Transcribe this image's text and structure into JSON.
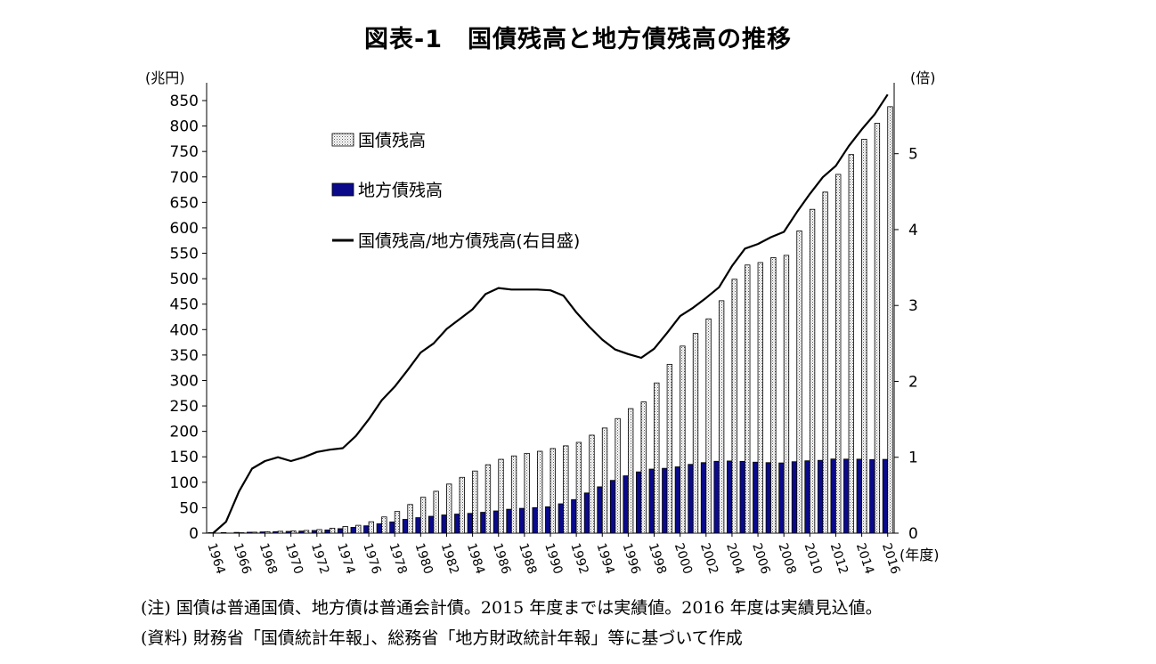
{
  "title": "図表-1　国債残高と地方債残高の推移",
  "notes": {
    "note1": "(注) 国債は普通国債、地方債は普通会計債。2015 年度までは実績値。2016 年度は実績見込値。",
    "note2": "(資料) 財務省「国債統計年報」、総務省「地方財政統計年報」等に基づいて作成"
  },
  "chart_data": {
    "type": "bar",
    "title": "図表-1　国債残高と地方債残高の推移",
    "xlabel": "(年度)",
    "ylabel": "(兆円)",
    "y2label": "(倍)",
    "ylim": [
      0,
      850
    ],
    "y2lim": [
      0,
      5.7
    ],
    "y_ticks": [
      0,
      50,
      100,
      150,
      200,
      250,
      300,
      350,
      400,
      450,
      500,
      550,
      600,
      650,
      700,
      750,
      800,
      850
    ],
    "y2_ticks": [
      0,
      1,
      2,
      3,
      4,
      5
    ],
    "x_tick_labels": [
      "1964",
      "1966",
      "1968",
      "1970",
      "1972",
      "1974",
      "1976",
      "1978",
      "1980",
      "1982",
      "1984",
      "1986",
      "1988",
      "1990",
      "1992",
      "1994",
      "1996",
      "1998",
      "2000",
      "2002",
      "2004",
      "2006",
      "2008",
      "2010",
      "2012",
      "2014",
      "2016"
    ],
    "categories": [
      1964,
      1965,
      1966,
      1967,
      1968,
      1969,
      1970,
      1971,
      1972,
      1973,
      1974,
      1975,
      1976,
      1977,
      1978,
      1979,
      1980,
      1981,
      1982,
      1983,
      1984,
      1985,
      1986,
      1987,
      1988,
      1989,
      1990,
      1991,
      1992,
      1993,
      1994,
      1995,
      1996,
      1997,
      1998,
      1999,
      2000,
      2001,
      2002,
      2003,
      2004,
      2005,
      2006,
      2007,
      2008,
      2009,
      2010,
      2011,
      2012,
      2013,
      2014,
      2015,
      2016
    ],
    "legend": [
      "国債残高",
      "地方債残高",
      "国債残高/地方債残高(右目盛)"
    ],
    "series": [
      {
        "name": "国債残高",
        "axis": "left",
        "type": "bar",
        "values": [
          0,
          0.2,
          0.9,
          1.9,
          2.8,
          3.7,
          4.2,
          5.3,
          7.0,
          9.7,
          13.1,
          15.5,
          22.4,
          31.9,
          42.6,
          56.3,
          70.5,
          82.3,
          96.5,
          109.7,
          122.1,
          134.4,
          145.1,
          151.8,
          156.8,
          160.9,
          166.3,
          171.6,
          178.4,
          192.5,
          206.6,
          225.2,
          244.7,
          258.0,
          295.2,
          331.7,
          367.6,
          392.4,
          421.1,
          456.7,
          499.0,
          526.9,
          531.7,
          541.5,
          545.9,
          593.9,
          636.3,
          670.2,
          705.0,
          743.9,
          774.1,
          805.4,
          838.0
        ]
      },
      {
        "name": "地方債残高",
        "axis": "left",
        "type": "bar",
        "values": [
          1.0,
          1.2,
          1.5,
          1.9,
          2.5,
          3.0,
          3.5,
          4.1,
          5.3,
          6.3,
          8.9,
          11.4,
          14.5,
          18.4,
          22.1,
          27.1,
          30.5,
          33.2,
          35.8,
          37.5,
          38.9,
          41.0,
          43.7,
          47.0,
          48.8,
          50.2,
          51.8,
          57.7,
          66.0,
          79.0,
          91.1,
          103.7,
          112.7,
          120.4,
          125.9,
          127.4,
          130.3,
          135.2,
          138.6,
          141.2,
          141.8,
          141.1,
          139.5,
          138.6,
          138.0,
          140.4,
          142.2,
          143.1,
          145.7,
          145.5,
          145.4,
          144.6,
          145.0
        ]
      },
      {
        "name": "国債残高/地方債残高(右目盛)",
        "axis": "right",
        "type": "line",
        "values": [
          0,
          0.15,
          0.55,
          0.85,
          0.95,
          1.0,
          0.95,
          1.0,
          1.07,
          1.1,
          1.12,
          1.28,
          1.5,
          1.75,
          1.93,
          2.15,
          2.38,
          2.5,
          2.69,
          2.82,
          2.95,
          3.15,
          3.23,
          3.21,
          3.21,
          3.21,
          3.2,
          3.13,
          2.91,
          2.72,
          2.55,
          2.42,
          2.36,
          2.31,
          2.43,
          2.64,
          2.86,
          2.97,
          3.1,
          3.24,
          3.52,
          3.75,
          3.81,
          3.9,
          3.97,
          4.23,
          4.47,
          4.69,
          4.84,
          5.1,
          5.32,
          5.52,
          5.78
        ]
      }
    ]
  }
}
